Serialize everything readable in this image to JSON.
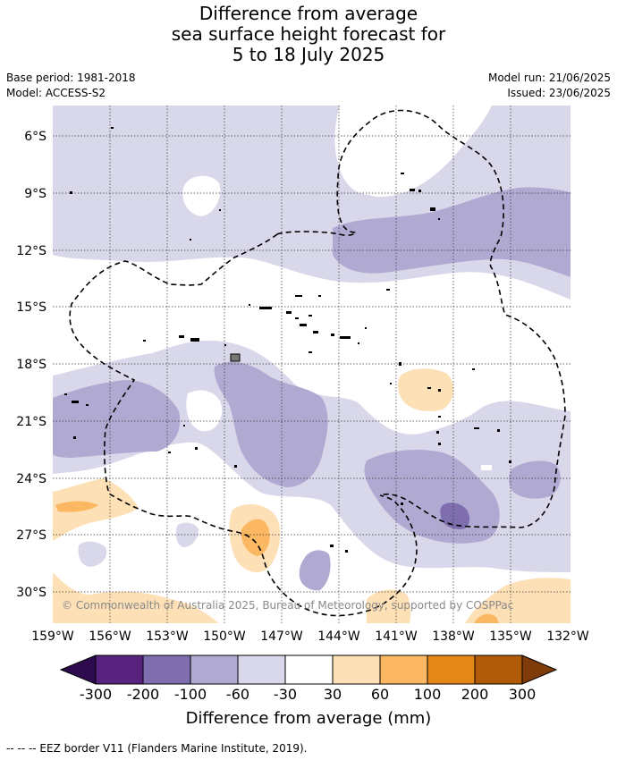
{
  "title": {
    "line1": "Difference from average",
    "line2": "sea surface height forecast for",
    "line3": "5 to 18 July 2025"
  },
  "meta_left": {
    "base_period": "Base period: 1981-2018",
    "model": "Model: ACCESS-S2"
  },
  "meta_right": {
    "model_run": "Model run: 21/06/2025",
    "issued": "Issued: 23/06/2025"
  },
  "map": {
    "lat_labels": [
      "6°S",
      "9°S",
      "12°S",
      "15°S",
      "18°S",
      "21°S",
      "24°S",
      "27°S",
      "30°S"
    ],
    "lon_labels": [
      "159°W",
      "156°W",
      "153°W",
      "150°W",
      "147°W",
      "144°W",
      "141°W",
      "138°W",
      "135°W",
      "132°W"
    ],
    "copyright": "© Commonwealth of Australia 2025, Bureau of Meteorology, supported by COSPPac",
    "colors": {
      "neg_30_60": "#d8d8ea",
      "neg_60_100": "#b0aad2",
      "neg_100_200": "#7e6eae",
      "pos_30_60": "#fde0b6",
      "pos_60_100": "#fbb761"
    }
  },
  "colorbar": {
    "labels": [
      "-300",
      "-200",
      "-100",
      "-60",
      "-30",
      "30",
      "60",
      "100",
      "200",
      "300"
    ],
    "colors": [
      "#2d0a4e",
      "#58237f",
      "#7e6eae",
      "#b0aad2",
      "#d8d8ea",
      "#ffffff",
      "#fde0b6",
      "#fbb761",
      "#e38717",
      "#b15a08",
      "#7f3b08"
    ],
    "title": "Difference from average (mm)"
  },
  "footer": "--  --  -- EEZ border V11 (Flanders Marine Institute, 2019)."
}
